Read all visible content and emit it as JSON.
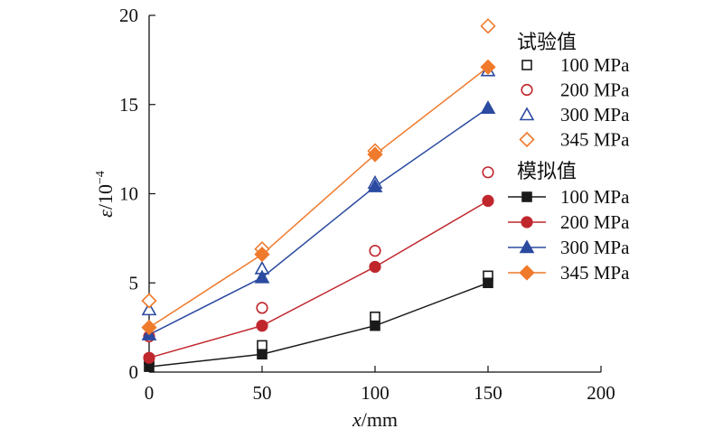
{
  "chart_data": {
    "type": "scatter",
    "x_ticks": [
      "0",
      "50",
      "100",
      "150",
      "200"
    ],
    "y_ticks": [
      "0",
      "5",
      "10",
      "15",
      "20"
    ],
    "xlabel_var": "x",
    "xlabel_unit": "/mm",
    "ylabel_var": "ε",
    "ylabel_unit": "/10",
    "ylabel_exp": "−4",
    "xlim": [
      0,
      200
    ],
    "ylim": [
      0,
      20
    ],
    "legend_placement": "top-right",
    "legend_group_test": "试验值",
    "legend_group_sim": "模拟值",
    "test_series": [
      {
        "name": "100 MPa",
        "color": "#1a1a1a",
        "marker": "square",
        "x": [
          0,
          50,
          100,
          150
        ],
        "y": [
          0.7,
          1.5,
          3.1,
          5.4
        ]
      },
      {
        "name": "200 MPa",
        "color": "#c0272d",
        "marker": "circle",
        "x": [
          0,
          50,
          100,
          150
        ],
        "y": [
          2.0,
          3.6,
          6.8,
          11.2
        ]
      },
      {
        "name": "300 MPa",
        "color": "#2b4aa0",
        "marker": "triangle",
        "x": [
          0,
          50,
          100,
          150
        ],
        "y": [
          3.5,
          5.8,
          10.6,
          16.9
        ]
      },
      {
        "name": "345 MPa",
        "color": "#ef7a2c",
        "marker": "diamond",
        "x": [
          0,
          50,
          100,
          150
        ],
        "y": [
          4.0,
          6.9,
          12.4,
          19.4
        ]
      }
    ],
    "sim_series": [
      {
        "name": "100 MPa",
        "color": "#1a1a1a",
        "marker": "square",
        "x": [
          0,
          50,
          100,
          150
        ],
        "y": [
          0.3,
          1.0,
          2.6,
          5.0
        ]
      },
      {
        "name": "200 MPa",
        "color": "#c0272d",
        "marker": "circle",
        "x": [
          0,
          50,
          100,
          150
        ],
        "y": [
          0.8,
          2.6,
          5.9,
          9.6
        ]
      },
      {
        "name": "300 MPa",
        "color": "#2b4aa0",
        "marker": "triangle",
        "x": [
          0,
          50,
          100,
          150
        ],
        "y": [
          2.1,
          5.3,
          10.4,
          14.8
        ]
      },
      {
        "name": "345 MPa",
        "color": "#ef7a2c",
        "marker": "diamond",
        "x": [
          0,
          50,
          100,
          150
        ],
        "y": [
          2.5,
          6.6,
          12.2,
          17.1
        ]
      }
    ]
  }
}
